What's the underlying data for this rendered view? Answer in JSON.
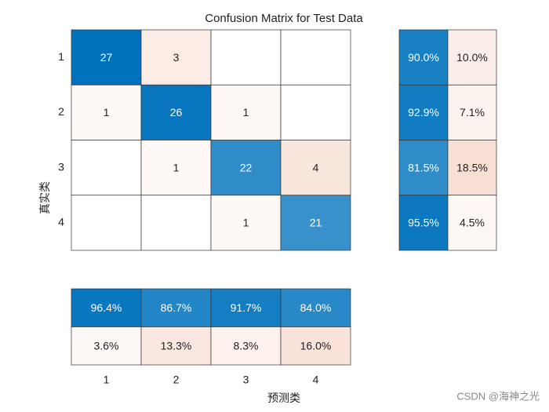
{
  "chart_data": {
    "type": "confusion_matrix",
    "title": "Confusion Matrix for Test Data",
    "xlabel": "预测类",
    "ylabel": "真实类",
    "classes": [
      "1",
      "2",
      "3",
      "4"
    ],
    "matrix": [
      [
        27,
        3,
        null,
        null
      ],
      [
        1,
        26,
        1,
        null
      ],
      [
        null,
        1,
        22,
        4
      ],
      [
        null,
        null,
        1,
        21
      ]
    ],
    "row_summary": {
      "values": [
        [
          90.0,
          10.0
        ],
        [
          92.9,
          7.1
        ],
        [
          81.5,
          18.5
        ],
        [
          95.5,
          4.5
        ]
      ],
      "value_labels": [
        [
          "90.0%",
          "10.0%"
        ],
        [
          "92.9%",
          "7.1%"
        ],
        [
          "81.5%",
          "18.5%"
        ],
        [
          "95.5%",
          "4.5%"
        ]
      ]
    },
    "column_summary": {
      "values": [
        [
          96.4,
          86.7,
          91.7,
          84.0
        ],
        [
          3.6,
          13.3,
          8.3,
          16.0
        ]
      ],
      "value_labels": [
        [
          "96.4%",
          "86.7%",
          "91.7%",
          "84.0%"
        ],
        [
          "3.6%",
          "13.3%",
          "8.3%",
          "16.0%"
        ]
      ]
    },
    "correct_color": "#0072bd",
    "incorrect_color": "#d95319"
  },
  "watermark": "CSDN @海神之光"
}
